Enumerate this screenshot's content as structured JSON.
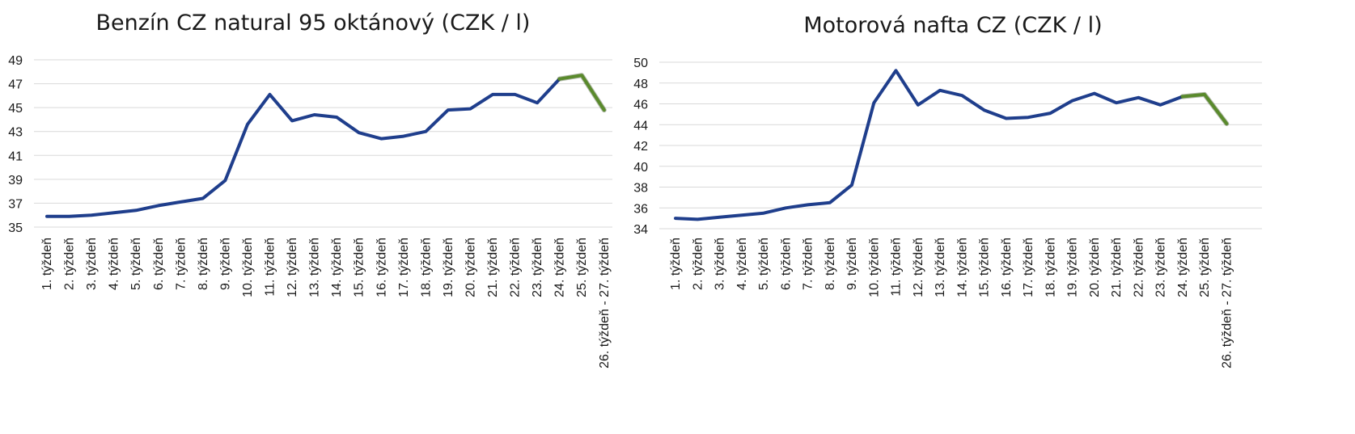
{
  "chart_data": [
    {
      "type": "line",
      "title": "Benzín CZ natural 95 oktánový (CZK / l)",
      "categories": [
        "1. týždeň",
        "2. týždeň",
        "3. týždeň",
        "4. týždeň",
        "5. týždeň",
        "6. týždeň",
        "7. týždeň",
        "8. týždeň",
        "9. týždeň",
        "10. týždeň",
        "11. týždeň",
        "12. týždeň",
        "13. týždeň",
        "14. týždeň",
        "15. týždeň",
        "16. týždeň",
        "17. týždeň",
        "18. týždeň",
        "19. týždeň",
        "20. týždeň",
        "21. týždeň",
        "22. týždeň",
        "23. týždeň",
        "24. týždeň",
        "25. týždeň",
        "26. týždeň - 27. týždeň"
      ],
      "series": [
        {
          "values": [
            35.9,
            35.9,
            36.0,
            36.2,
            36.4,
            36.8,
            37.1,
            37.4,
            38.9,
            43.6,
            46.1,
            43.9,
            44.4,
            44.2,
            42.9,
            42.4,
            42.6,
            43.0,
            44.8,
            44.9,
            46.1,
            46.1,
            45.4,
            47.4,
            47.7,
            44.8
          ],
          "color": "#1f3e8c"
        }
      ],
      "highlight_segment": {
        "from_index": 23,
        "to_index": 25,
        "color": "#5a8a2c"
      },
      "yticks": [
        35,
        37,
        39,
        41,
        43,
        45,
        47,
        49
      ],
      "ylim": [
        35,
        49
      ],
      "grid": true
    },
    {
      "type": "line",
      "title": "Motorová nafta CZ (CZK / l)",
      "categories": [
        "1. týždeň",
        "2. týždeň",
        "3. týždeň",
        "4. týždeň",
        "5. týždeň",
        "6. týždeň",
        "7. týždeň",
        "8. týždeň",
        "9. týždeň",
        "10. týždeň",
        "11. týždeň",
        "12. týždeň",
        "13. týždeň",
        "14. týždeň",
        "15. týždeň",
        "16. týždeň",
        "17. týždeň",
        "18. týždeň",
        "19. týždeň",
        "20. týždeň",
        "21. týždeň",
        "22. týždeň",
        "23. týždeň",
        "24. týždeň",
        "25. týždeň",
        "26. týždeň - 27. týždeň"
      ],
      "series": [
        {
          "values": [
            35.0,
            34.9,
            35.1,
            35.3,
            35.5,
            36.0,
            36.3,
            36.5,
            38.2,
            46.1,
            49.2,
            45.9,
            47.3,
            46.8,
            45.4,
            44.6,
            44.7,
            45.1,
            46.3,
            47.0,
            46.1,
            46.6,
            45.9,
            46.7,
            46.9,
            44.1
          ],
          "color": "#1f3e8c"
        }
      ],
      "highlight_segment": {
        "from_index": 23,
        "to_index": 25,
        "color": "#5a8a2c"
      },
      "yticks": [
        34,
        36,
        38,
        40,
        42,
        44,
        46,
        48,
        50
      ],
      "ylim": [
        34,
        50
      ],
      "grid": true
    }
  ]
}
